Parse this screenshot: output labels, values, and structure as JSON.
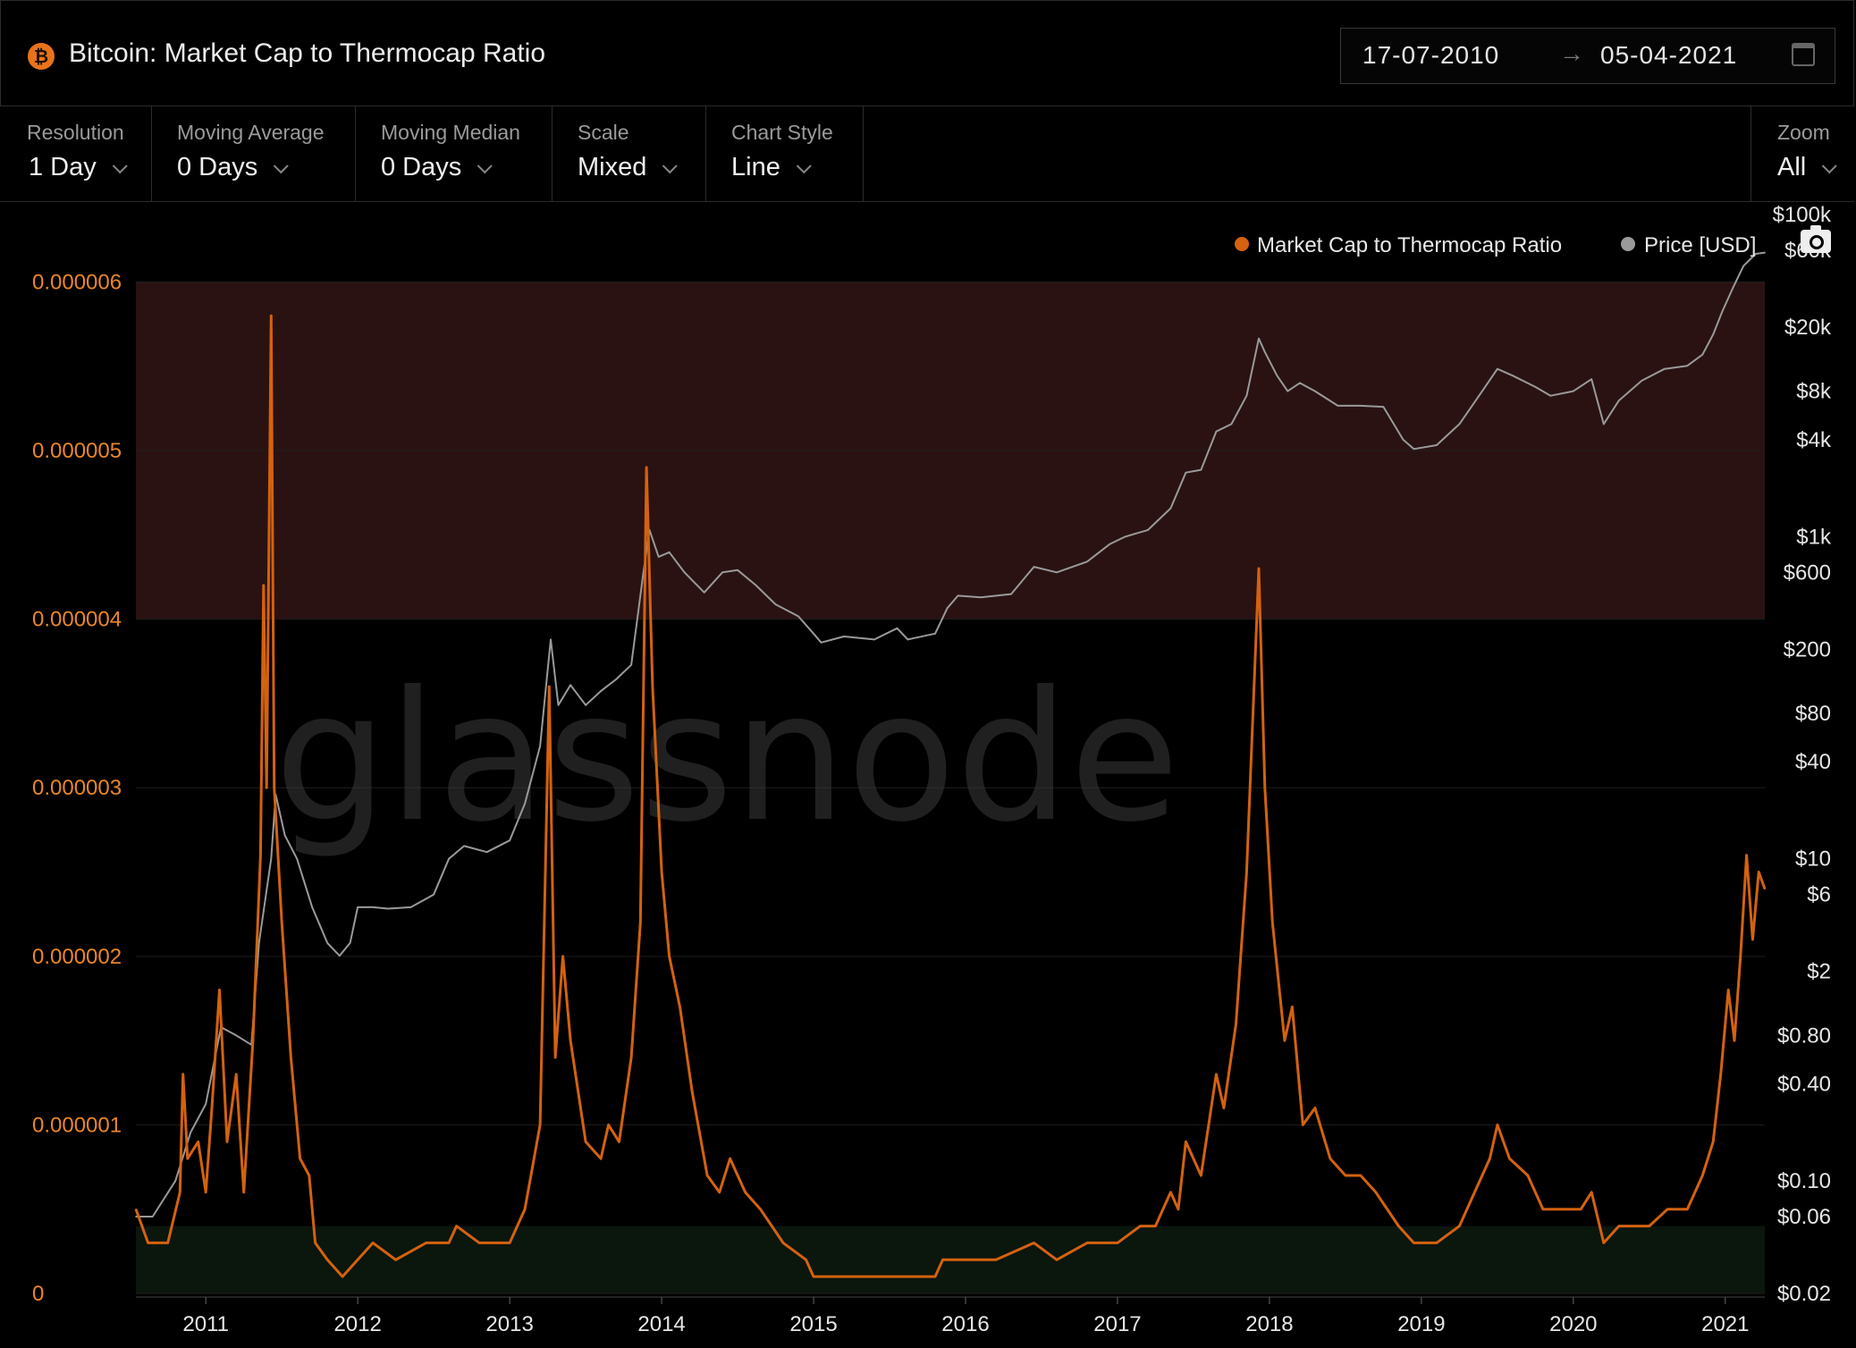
{
  "header": {
    "title": "Bitcoin: Market Cap to Thermocap Ratio",
    "date_from": "17-07-2010",
    "date_arrow": "→",
    "date_to": "05-04-2021"
  },
  "toolbar": {
    "resolution": {
      "label": "Resolution",
      "value": "1 Day"
    },
    "moving_average": {
      "label": "Moving Average",
      "value": "0 Days"
    },
    "moving_median": {
      "label": "Moving Median",
      "value": "0 Days"
    },
    "scale": {
      "label": "Scale",
      "value": "Mixed"
    },
    "chart_style": {
      "label": "Chart Style",
      "value": "Line"
    },
    "zoom": {
      "label": "Zoom",
      "value": "All"
    }
  },
  "watermark": "glassnode",
  "colors": {
    "ratio": "#d4620f",
    "price": "#9a9a9a",
    "red_band": "#2a1212",
    "green_band": "#0b160d",
    "left_axis": "#e8862a"
  },
  "chart_data": {
    "type": "line",
    "legend": [
      "Market Cap to Thermocap Ratio",
      "Price [USD]"
    ],
    "legend_position": "top-right",
    "x_ticks": [
      "2011",
      "2012",
      "2013",
      "2014",
      "2015",
      "2016",
      "2017",
      "2018",
      "2019",
      "2020",
      "2021"
    ],
    "x_range": [
      2010.54,
      2021.26
    ],
    "left_axis": {
      "scale": "linear",
      "range": [
        0,
        6.4e-06
      ],
      "ticks": [
        0,
        1e-06,
        2e-06,
        3e-06,
        4e-06,
        5e-06,
        6e-06
      ],
      "tick_labels": [
        "0",
        "0.000001",
        "0.000002",
        "0.000003",
        "0.000004",
        "0.000005",
        "0.000006"
      ]
    },
    "right_axis": {
      "scale": "log",
      "range": [
        0.02,
        100000
      ],
      "ticks": [
        0.02,
        0.06,
        0.1,
        0.4,
        0.8,
        2,
        6,
        10,
        40,
        80,
        200,
        600,
        1000,
        4000,
        8000,
        20000,
        60000,
        100000
      ],
      "tick_labels": [
        "$0.02",
        "$0.06",
        "$0.10",
        "$0.40",
        "$0.80",
        "$2",
        "$6",
        "$10",
        "$40",
        "$80",
        "$200",
        "$600",
        "$1k",
        "$4k",
        "$8k",
        "$20k",
        "$60k",
        "$100k"
      ]
    },
    "bands": [
      {
        "from": 4e-06,
        "to": 6e-06,
        "color": "red"
      },
      {
        "from": 0,
        "to": 4e-07,
        "color": "green"
      }
    ],
    "series": [
      {
        "name": "Market Cap to Thermocap Ratio",
        "axis": "left",
        "points": [
          [
            2010.54,
            5e-07
          ],
          [
            2010.62,
            3e-07
          ],
          [
            2010.75,
            3e-07
          ],
          [
            2010.83,
            6e-07
          ],
          [
            2010.85,
            1.3e-06
          ],
          [
            2010.88,
            8e-07
          ],
          [
            2010.95,
            9e-07
          ],
          [
            2011.0,
            6e-07
          ],
          [
            2011.04,
            1.1e-06
          ],
          [
            2011.09,
            1.8e-06
          ],
          [
            2011.14,
            9e-07
          ],
          [
            2011.2,
            1.3e-06
          ],
          [
            2011.25,
            6e-07
          ],
          [
            2011.31,
            1.5e-06
          ],
          [
            2011.36,
            2.6e-06
          ],
          [
            2011.38,
            4.2e-06
          ],
          [
            2011.4,
            3e-06
          ],
          [
            2011.43,
            5.8e-06
          ],
          [
            2011.45,
            3e-06
          ],
          [
            2011.5,
            2.2e-06
          ],
          [
            2011.56,
            1.4e-06
          ],
          [
            2011.62,
            8e-07
          ],
          [
            2011.68,
            7e-07
          ],
          [
            2011.72,
            3e-07
          ],
          [
            2011.8,
            2e-07
          ],
          [
            2011.9,
            1e-07
          ],
          [
            2012.0,
            2e-07
          ],
          [
            2012.1,
            3e-07
          ],
          [
            2012.25,
            2e-07
          ],
          [
            2012.45,
            3e-07
          ],
          [
            2012.6,
            3e-07
          ],
          [
            2012.65,
            4e-07
          ],
          [
            2012.8,
            3e-07
          ],
          [
            2013.0,
            3e-07
          ],
          [
            2013.1,
            5e-07
          ],
          [
            2013.2,
            1e-06
          ],
          [
            2013.26,
            3.6e-06
          ],
          [
            2013.3,
            1.4e-06
          ],
          [
            2013.35,
            2e-06
          ],
          [
            2013.4,
            1.5e-06
          ],
          [
            2013.5,
            9e-07
          ],
          [
            2013.6,
            8e-07
          ],
          [
            2013.65,
            1e-06
          ],
          [
            2013.72,
            9e-07
          ],
          [
            2013.8,
            1.4e-06
          ],
          [
            2013.86,
            2.2e-06
          ],
          [
            2013.9,
            4.9e-06
          ],
          [
            2013.94,
            3.6e-06
          ],
          [
            2014.0,
            2.5e-06
          ],
          [
            2014.05,
            2e-06
          ],
          [
            2014.12,
            1.7e-06
          ],
          [
            2014.2,
            1.2e-06
          ],
          [
            2014.3,
            7e-07
          ],
          [
            2014.38,
            6e-07
          ],
          [
            2014.45,
            8e-07
          ],
          [
            2014.55,
            6e-07
          ],
          [
            2014.65,
            5e-07
          ],
          [
            2014.8,
            3e-07
          ],
          [
            2014.95,
            2e-07
          ],
          [
            2015.0,
            1e-07
          ],
          [
            2015.1,
            1e-07
          ],
          [
            2015.3,
            1e-07
          ],
          [
            2015.5,
            1e-07
          ],
          [
            2015.62,
            1e-07
          ],
          [
            2015.8,
            1e-07
          ],
          [
            2015.85,
            2e-07
          ],
          [
            2016.0,
            2e-07
          ],
          [
            2016.2,
            2e-07
          ],
          [
            2016.45,
            3e-07
          ],
          [
            2016.6,
            2e-07
          ],
          [
            2016.8,
            3e-07
          ],
          [
            2017.0,
            3e-07
          ],
          [
            2017.15,
            4e-07
          ],
          [
            2017.25,
            4e-07
          ],
          [
            2017.35,
            6e-07
          ],
          [
            2017.4,
            5e-07
          ],
          [
            2017.45,
            9e-07
          ],
          [
            2017.55,
            7e-07
          ],
          [
            2017.6,
            1e-06
          ],
          [
            2017.65,
            1.3e-06
          ],
          [
            2017.7,
            1.1e-06
          ],
          [
            2017.78,
            1.6e-06
          ],
          [
            2017.85,
            2.5e-06
          ],
          [
            2017.93,
            4.3e-06
          ],
          [
            2017.97,
            3e-06
          ],
          [
            2018.02,
            2.2e-06
          ],
          [
            2018.1,
            1.5e-06
          ],
          [
            2018.15,
            1.7e-06
          ],
          [
            2018.22,
            1e-06
          ],
          [
            2018.3,
            1.1e-06
          ],
          [
            2018.4,
            8e-07
          ],
          [
            2018.5,
            7e-07
          ],
          [
            2018.6,
            7e-07
          ],
          [
            2018.7,
            6e-07
          ],
          [
            2018.85,
            4e-07
          ],
          [
            2018.95,
            3e-07
          ],
          [
            2019.1,
            3e-07
          ],
          [
            2019.25,
            4e-07
          ],
          [
            2019.35,
            6e-07
          ],
          [
            2019.45,
            8e-07
          ],
          [
            2019.5,
            1e-06
          ],
          [
            2019.58,
            8e-07
          ],
          [
            2019.7,
            7e-07
          ],
          [
            2019.8,
            5e-07
          ],
          [
            2019.95,
            5e-07
          ],
          [
            2020.05,
            5e-07
          ],
          [
            2020.12,
            6e-07
          ],
          [
            2020.2,
            3e-07
          ],
          [
            2020.3,
            4e-07
          ],
          [
            2020.5,
            4e-07
          ],
          [
            2020.62,
            5e-07
          ],
          [
            2020.75,
            5e-07
          ],
          [
            2020.85,
            7e-07
          ],
          [
            2020.92,
            9e-07
          ],
          [
            2020.97,
            1.3e-06
          ],
          [
            2021.02,
            1.8e-06
          ],
          [
            2021.06,
            1.5e-06
          ],
          [
            2021.1,
            2e-06
          ],
          [
            2021.14,
            2.6e-06
          ],
          [
            2021.18,
            2.1e-06
          ],
          [
            2021.22,
            2.5e-06
          ],
          [
            2021.26,
            2.4e-06
          ]
        ]
      },
      {
        "name": "Price [USD]",
        "axis": "right",
        "points": [
          [
            2010.54,
            0.06
          ],
          [
            2010.65,
            0.06
          ],
          [
            2010.8,
            0.1
          ],
          [
            2010.9,
            0.2
          ],
          [
            2011.0,
            0.3
          ],
          [
            2011.1,
            0.9
          ],
          [
            2011.2,
            0.8
          ],
          [
            2011.3,
            0.7
          ],
          [
            2011.35,
            3
          ],
          [
            2011.43,
            10
          ],
          [
            2011.46,
            25
          ],
          [
            2011.52,
            14
          ],
          [
            2011.6,
            10
          ],
          [
            2011.7,
            5
          ],
          [
            2011.8,
            3
          ],
          [
            2011.88,
            2.5
          ],
          [
            2011.95,
            3
          ],
          [
            2012.0,
            5
          ],
          [
            2012.1,
            5
          ],
          [
            2012.2,
            4.9
          ],
          [
            2012.35,
            5
          ],
          [
            2012.5,
            6
          ],
          [
            2012.6,
            10
          ],
          [
            2012.7,
            12
          ],
          [
            2012.85,
            11
          ],
          [
            2013.0,
            13
          ],
          [
            2013.1,
            22
          ],
          [
            2013.2,
            50
          ],
          [
            2013.27,
            230
          ],
          [
            2013.32,
            90
          ],
          [
            2013.4,
            120
          ],
          [
            2013.5,
            90
          ],
          [
            2013.6,
            110
          ],
          [
            2013.7,
            130
          ],
          [
            2013.8,
            160
          ],
          [
            2013.88,
            600
          ],
          [
            2013.92,
            1100
          ],
          [
            2013.98,
            750
          ],
          [
            2014.05,
            800
          ],
          [
            2014.15,
            600
          ],
          [
            2014.28,
            450
          ],
          [
            2014.4,
            600
          ],
          [
            2014.5,
            620
          ],
          [
            2014.62,
            500
          ],
          [
            2014.75,
            380
          ],
          [
            2014.9,
            320
          ],
          [
            2015.0,
            250
          ],
          [
            2015.05,
            220
          ],
          [
            2015.2,
            240
          ],
          [
            2015.4,
            230
          ],
          [
            2015.55,
            270
          ],
          [
            2015.62,
            230
          ],
          [
            2015.8,
            250
          ],
          [
            2015.88,
            360
          ],
          [
            2015.95,
            430
          ],
          [
            2016.1,
            420
          ],
          [
            2016.3,
            440
          ],
          [
            2016.45,
            650
          ],
          [
            2016.6,
            600
          ],
          [
            2016.8,
            700
          ],
          [
            2016.95,
            900
          ],
          [
            2017.05,
            1000
          ],
          [
            2017.2,
            1100
          ],
          [
            2017.35,
            1500
          ],
          [
            2017.45,
            2500
          ],
          [
            2017.55,
            2600
          ],
          [
            2017.65,
            4500
          ],
          [
            2017.75,
            5000
          ],
          [
            2017.85,
            7500
          ],
          [
            2017.93,
            17000
          ],
          [
            2017.97,
            14000
          ],
          [
            2018.05,
            10000
          ],
          [
            2018.12,
            8000
          ],
          [
            2018.2,
            9000
          ],
          [
            2018.3,
            8000
          ],
          [
            2018.45,
            6500
          ],
          [
            2018.6,
            6500
          ],
          [
            2018.75,
            6400
          ],
          [
            2018.88,
            4000
          ],
          [
            2018.95,
            3500
          ],
          [
            2019.1,
            3700
          ],
          [
            2019.25,
            5000
          ],
          [
            2019.4,
            8000
          ],
          [
            2019.5,
            11000
          ],
          [
            2019.6,
            10000
          ],
          [
            2019.75,
            8500
          ],
          [
            2019.85,
            7500
          ],
          [
            2020.0,
            8000
          ],
          [
            2020.12,
            9500
          ],
          [
            2020.2,
            5000
          ],
          [
            2020.3,
            7000
          ],
          [
            2020.45,
            9300
          ],
          [
            2020.6,
            11000
          ],
          [
            2020.75,
            11500
          ],
          [
            2020.85,
            13500
          ],
          [
            2020.92,
            18000
          ],
          [
            2020.98,
            25000
          ],
          [
            2021.05,
            35000
          ],
          [
            2021.12,
            48000
          ],
          [
            2021.2,
            57000
          ],
          [
            2021.26,
            58000
          ]
        ]
      }
    ]
  }
}
